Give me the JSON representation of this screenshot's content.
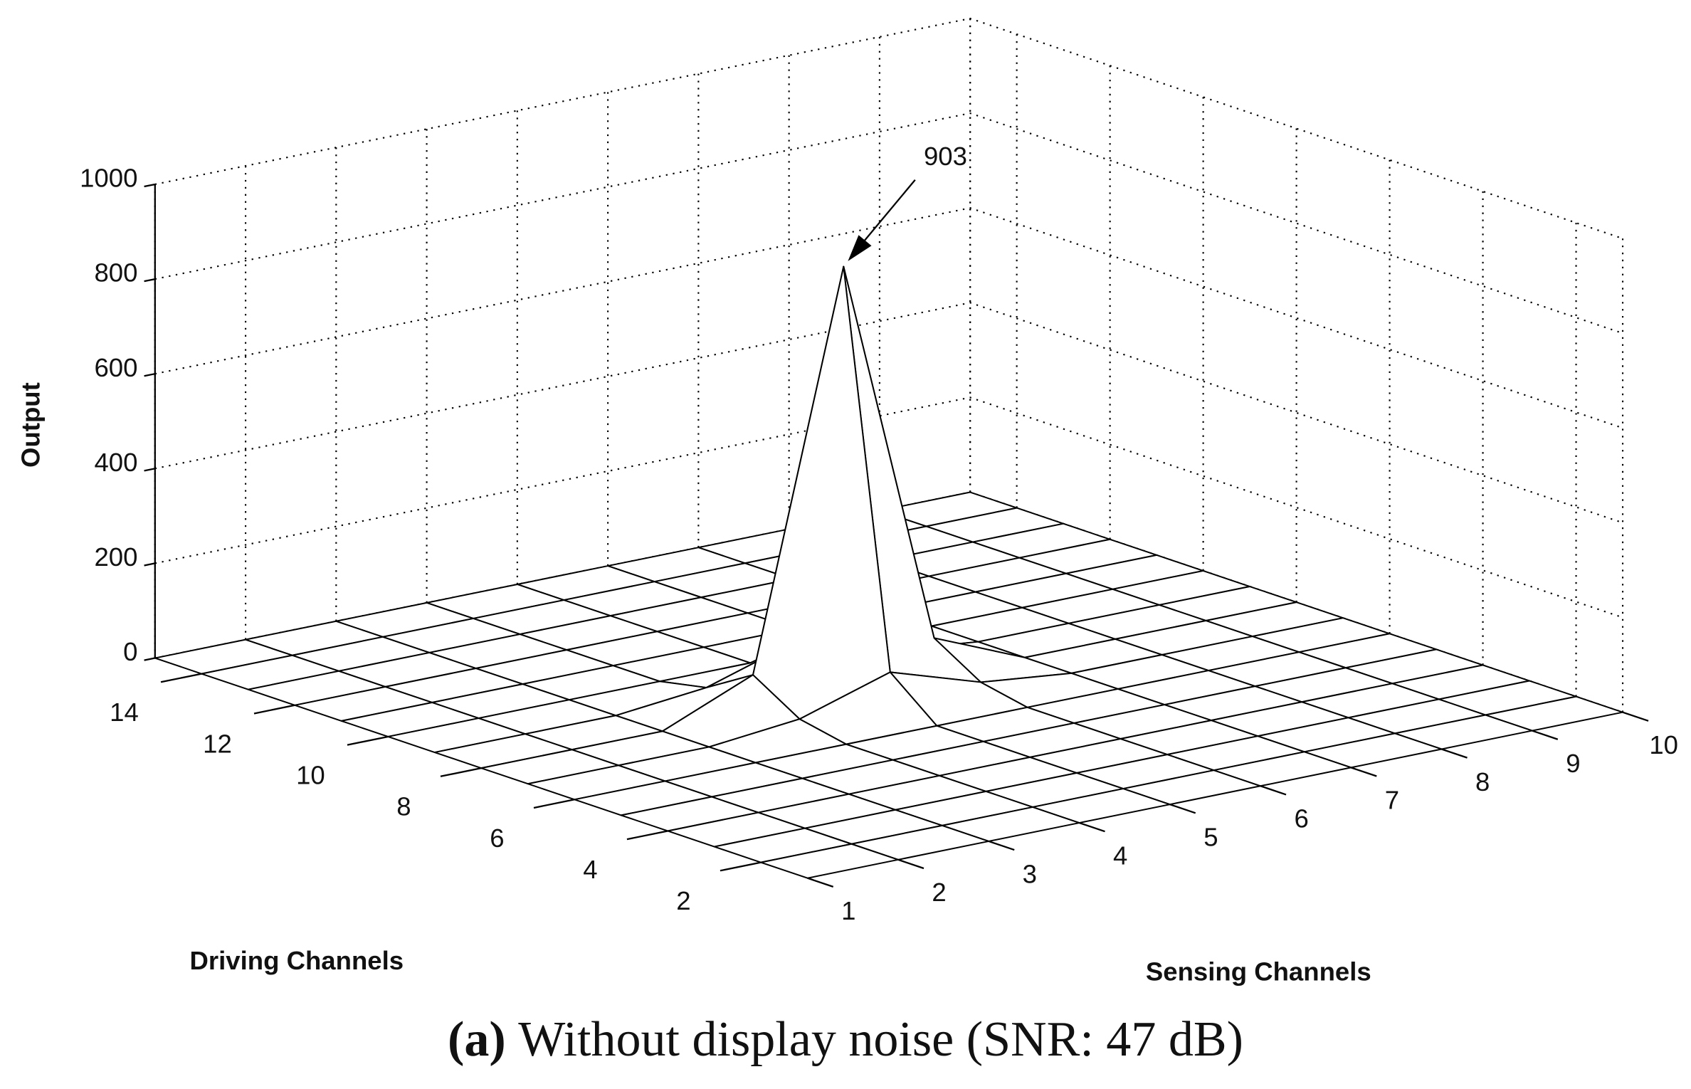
{
  "chart_data": {
    "type": "surface",
    "zlabel": "Output",
    "xlabel": "Sensing Channels",
    "ylabel": "Driving Channels",
    "caption_label": "(a)",
    "caption": "Without display noise (SNR: 47 dB)",
    "sensing": [
      1,
      2,
      3,
      4,
      5,
      6,
      7,
      8,
      9,
      10
    ],
    "driving": [
      1,
      2,
      3,
      4,
      5,
      6,
      7,
      8,
      9,
      10,
      11,
      12,
      13,
      14,
      15
    ],
    "z": [
      [
        0,
        0,
        0,
        0,
        0,
        0,
        0,
        0,
        0,
        0
      ],
      [
        0,
        0,
        0,
        0,
        0,
        0,
        0,
        0,
        0,
        0
      ],
      [
        0,
        0,
        0,
        0,
        0,
        0,
        0,
        0,
        0,
        0
      ],
      [
        0,
        0,
        0,
        0,
        0,
        0,
        0,
        0,
        0,
        0
      ],
      [
        0,
        0,
        0,
        0,
        0,
        0,
        0,
        0,
        0,
        0
      ],
      [
        0,
        0,
        0,
        0,
        0,
        0,
        0,
        0,
        0,
        0
      ],
      [
        0,
        0,
        0,
        20,
        80,
        20,
        0,
        0,
        0,
        0
      ],
      [
        0,
        0,
        0,
        80,
        903,
        80,
        0,
        0,
        0,
        0
      ],
      [
        0,
        0,
        0,
        20,
        80,
        20,
        0,
        0,
        0,
        0
      ],
      [
        0,
        0,
        0,
        0,
        0,
        0,
        0,
        0,
        0,
        0
      ],
      [
        0,
        0,
        0,
        0,
        0,
        0,
        0,
        0,
        0,
        0
      ],
      [
        0,
        0,
        0,
        0,
        0,
        0,
        0,
        0,
        0,
        0
      ],
      [
        0,
        0,
        0,
        0,
        0,
        0,
        0,
        0,
        0,
        0
      ],
      [
        0,
        0,
        0,
        0,
        0,
        0,
        0,
        0,
        0,
        0
      ],
      [
        0,
        0,
        0,
        0,
        0,
        0,
        0,
        0,
        0,
        0
      ]
    ],
    "xlim": [
      1,
      10
    ],
    "xticks": [
      1,
      2,
      3,
      4,
      5,
      6,
      7,
      8,
      9,
      10
    ],
    "ylim": [
      1,
      15
    ],
    "yticks": [
      2,
      4,
      6,
      8,
      10,
      12,
      14
    ],
    "zlim": [
      0,
      1000
    ],
    "zticks": [
      0,
      200,
      400,
      600,
      800,
      1000
    ],
    "grid": true,
    "surface_color": "#ffffff",
    "edge_color": "#000000"
  }
}
